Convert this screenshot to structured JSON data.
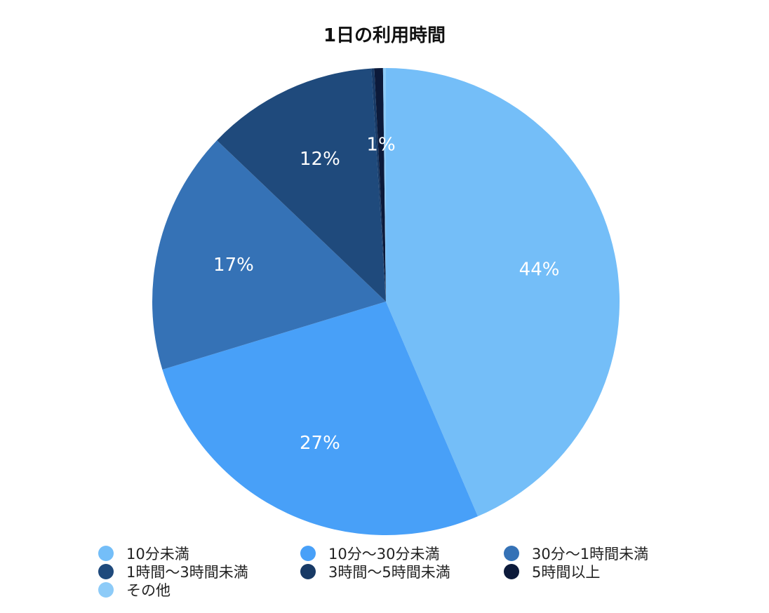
{
  "chart_data": {
    "type": "pie",
    "title": "1日の利用時間",
    "categories": [
      "10分未満",
      "10分〜30分未満",
      "30分〜1時間未満",
      "1時間〜3時間未満",
      "3時間〜5時間未満",
      "5時間以上",
      "その他"
    ],
    "values": [
      44,
      27,
      17,
      12,
      0.2,
      0.6,
      0.2
    ],
    "data_labels": [
      "44%",
      "27%",
      "17%",
      "12%",
      "",
      "1%",
      ""
    ],
    "colors": [
      "#74BEF8",
      "#48A0F8",
      "#3572B6",
      "#1F4A7C",
      "#183A66",
      "#0C1A3A",
      "#8DCBF8"
    ],
    "legend_position": "bottom",
    "start_angle_deg": 0,
    "direction": "clockwise"
  }
}
